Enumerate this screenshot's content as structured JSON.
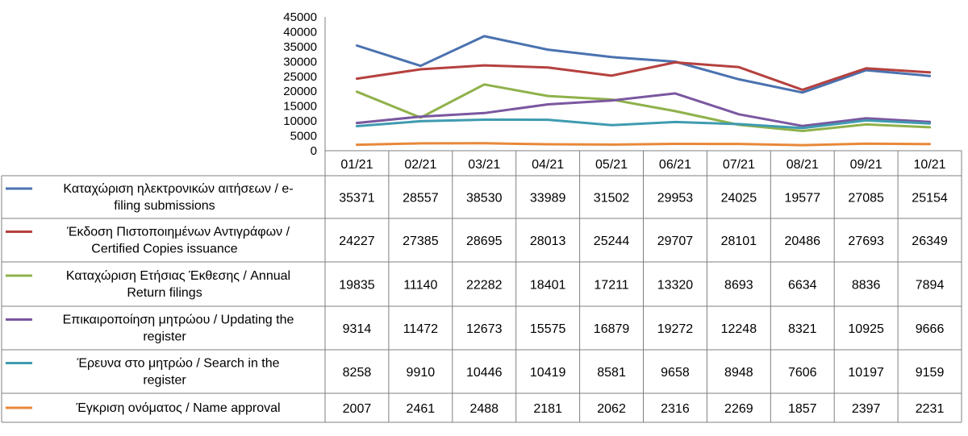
{
  "chart_data": {
    "type": "line",
    "categories": [
      "01/21",
      "02/21",
      "03/21",
      "04/21",
      "05/21",
      "06/21",
      "07/21",
      "08/21",
      "09/21",
      "10/21"
    ],
    "ylim": [
      0,
      45000
    ],
    "yticks": [
      0,
      5000,
      10000,
      15000,
      20000,
      25000,
      30000,
      35000,
      40000,
      45000
    ],
    "grid": false,
    "legend": "data-table-below",
    "series": [
      {
        "name": "Καταχώριση ηλεκτρονικών αιτήσεων / e-filing submissions",
        "name_lines": [
          "Καταχώριση ηλεκτρονικών αιτήσεων / e-",
          "filing submissions"
        ],
        "color": "#4a72b0",
        "values": [
          35371,
          28557,
          38530,
          33989,
          31502,
          29953,
          24025,
          19577,
          27085,
          25154
        ]
      },
      {
        "name": "Έκδοση Πιστοποιημένων Αντιγράφων / Certified Copies issuance",
        "name_lines": [
          "Έκδοση Πιστοποιημένων Αντιγράφων /",
          "Certified Copies issuance"
        ],
        "color": "#b5413f",
        "values": [
          24227,
          27385,
          28695,
          28013,
          25244,
          29707,
          28101,
          20486,
          27693,
          26349
        ]
      },
      {
        "name": "Καταχώριση Ετήσιας Έκθεσης / Annual Return filings",
        "name_lines": [
          "Καταχώριση Ετήσιας Έκθεσης / Annual",
          "Return filings"
        ],
        "color": "#8fb14a",
        "values": [
          19835,
          11140,
          22282,
          18401,
          17211,
          13320,
          8693,
          6634,
          8836,
          7894
        ]
      },
      {
        "name": "Επικαιροποίηση μητρώου / Updating the register",
        "name_lines": [
          "Επικαιροποίηση μητρώου / Updating the",
          "register"
        ],
        "color": "#7a57a0",
        "values": [
          9314,
          11472,
          12673,
          15575,
          16879,
          19272,
          12248,
          8321,
          10925,
          9666
        ]
      },
      {
        "name": "Έρευνα στο μητρώο / Search in the register",
        "name_lines": [
          "Έρευνα στο μητρώο / Search in the",
          "register"
        ],
        "color": "#3f9bb0",
        "values": [
          8258,
          9910,
          10446,
          10419,
          8581,
          9658,
          8948,
          7606,
          10197,
          9159
        ]
      },
      {
        "name": "Έγκριση ονόματος / Name approval",
        "name_lines": [
          "Έγκριση ονόματος / Name approval"
        ],
        "color": "#e8883a",
        "values": [
          2007,
          2461,
          2488,
          2181,
          2062,
          2316,
          2269,
          1857,
          2397,
          2231
        ]
      }
    ]
  }
}
